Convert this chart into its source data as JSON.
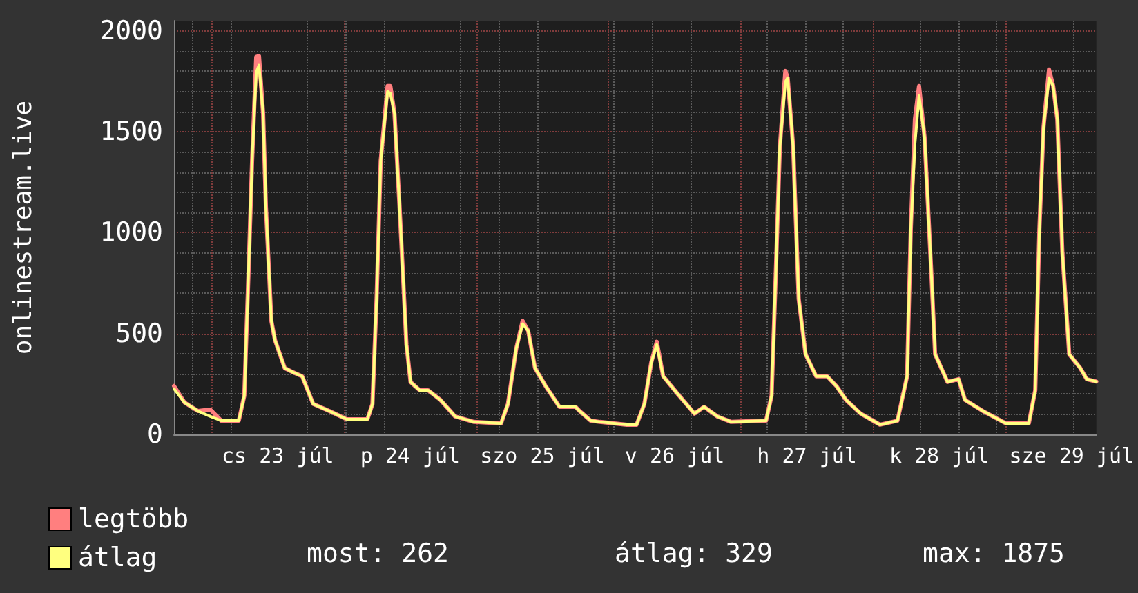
{
  "chart_data": {
    "type": "line",
    "ylabel": "onlinestream.live",
    "x": [
      "--07-22T17:10",
      "--07-22T19:05",
      "--07-22T21:30",
      "--07-22T23:45",
      "--07-23T01:45",
      "--07-23T04:55",
      "--07-23T05:55",
      "--07-23T06:40",
      "--07-23T07:20",
      "--07-23T08:05",
      "--07-23T08:35",
      "--07-23T09:20",
      "--07-23T09:50",
      "--07-23T10:50",
      "--07-23T11:30",
      "--07-23T13:15",
      "--07-23T14:45",
      "--07-23T16:25",
      "--07-23T18:25",
      "--07-23T21:20",
      "--07-24T00:30",
      "--07-24T04:15",
      "--07-24T05:10",
      "--07-24T05:55",
      "--07-24T06:40",
      "--07-24T07:55",
      "--07-24T08:25",
      "--07-24T09:10",
      "--07-24T10:05",
      "--07-24T11:20",
      "--07-24T12:05",
      "--07-24T13:45",
      "--07-24T15:15",
      "--07-24T17:30",
      "--07-24T20:10",
      "--07-24T23:35",
      "--07-25T04:30",
      "--07-25T05:45",
      "--07-25T07:15",
      "--07-25T08:25",
      "--07-25T09:25",
      "--07-25T10:40",
      "--07-25T12:35",
      "--07-25T15:05",
      "--07-25T18:00",
      "--07-25T18:45",
      "--07-25T20:45",
      "--07-25T22:25",
      "--07-26T03:20",
      "--07-26T05:05",
      "--07-26T06:30",
      "--07-26T07:45",
      "--07-26T08:45",
      "--07-26T09:55",
      "--07-26T12:25",
      "--07-26T15:35",
      "--07-26T17:20",
      "--07-26T19:45",
      "--07-26T22:15",
      "--07-27T04:35",
      "--07-27T05:35",
      "--07-27T06:20",
      "--07-27T07:05",
      "--07-27T08:05",
      "--07-27T08:30",
      "--07-27T09:30",
      "--07-27T10:30",
      "--07-27T11:45",
      "--07-27T13:40",
      "--07-27T15:40",
      "--07-27T17:20",
      "--07-27T19:05",
      "--07-27T21:45",
      "--07-28T01:15",
      "--07-28T04:25",
      "--07-28T06:10",
      "--07-28T06:50",
      "--07-28T07:35",
      "--07-28T08:20",
      "--07-28T09:20",
      "--07-28T10:35",
      "--07-28T11:15",
      "--07-28T13:30",
      "--07-28T15:30",
      "--07-28T16:40",
      "--07-28T19:55",
      "--07-29T00:05",
      "--07-29T04:15",
      "--07-29T05:25",
      "--07-29T06:10",
      "--07-29T06:55",
      "--07-29T07:55",
      "--07-29T08:40",
      "--07-29T09:25",
      "--07-29T10:20",
      "--07-29T11:35",
      "--07-29T13:35",
      "--07-29T14:45",
      "--07-29T16:30"
    ],
    "series": [
      {
        "name": "legtöbb",
        "color": "#ff7f7f",
        "values": [
          240,
          158,
          116,
          123,
          68,
          68,
          192,
          788,
          1356,
          1870,
          1875,
          1589,
          1130,
          561,
          466,
          329,
          308,
          288,
          151,
          116,
          75,
          75,
          151,
          671,
          1356,
          1726,
          1726,
          1589,
          1130,
          445,
          260,
          219,
          219,
          171,
          89,
          62,
          55,
          151,
          425,
          562,
          514,
          329,
          240,
          137,
          137,
          116,
          68,
          62,
          48,
          48,
          151,
          356,
          459,
          288,
          205,
          103,
          137,
          89,
          62,
          68,
          192,
          788,
          1425,
          1801,
          1767,
          1425,
          671,
          397,
          288,
          288,
          240,
          171,
          103,
          48,
          68,
          288,
          1014,
          1562,
          1726,
          1473,
          788,
          397,
          260,
          274,
          171,
          116,
          55,
          55,
          219,
          1014,
          1521,
          1808,
          1726,
          1562,
          904,
          397,
          329,
          274,
          262
        ]
      },
      {
        "name": "átlag",
        "color": "#ffff7f",
        "values": [
          226,
          158,
          116,
          89,
          68,
          68,
          192,
          788,
          1356,
          1795,
          1829,
          1589,
          1130,
          561,
          466,
          329,
          308,
          288,
          151,
          116,
          75,
          75,
          151,
          671,
          1356,
          1699,
          1690,
          1589,
          1130,
          445,
          260,
          219,
          219,
          171,
          89,
          62,
          55,
          151,
          425,
          548,
          514,
          329,
          240,
          137,
          137,
          116,
          68,
          62,
          48,
          48,
          151,
          356,
          445,
          288,
          205,
          103,
          137,
          89,
          62,
          68,
          192,
          788,
          1425,
          1747,
          1767,
          1425,
          671,
          397,
          288,
          288,
          240,
          171,
          103,
          48,
          68,
          288,
          1014,
          1438,
          1678,
          1473,
          788,
          397,
          260,
          274,
          171,
          116,
          55,
          55,
          219,
          1014,
          1521,
          1767,
          1726,
          1562,
          904,
          397,
          329,
          274,
          262
        ]
      }
    ],
    "xlim": [
      "--07-22T17:10",
      "--07-29T16:30"
    ],
    "xticks": [
      {
        "value": "--07-23T12:00",
        "label": "cs 23 júl"
      },
      {
        "value": "--07-24T12:00",
        "label": "p 24 júl"
      },
      {
        "value": "--07-25T12:00",
        "label": "szo 25 júl"
      },
      {
        "value": "--07-26T12:00",
        "label": "v 26 júl"
      },
      {
        "value": "--07-27T12:00",
        "label": "h 27 júl"
      },
      {
        "value": "--07-28T12:00",
        "label": "k 28 júl"
      },
      {
        "value": "--07-29T12:00",
        "label": "sze 29 júl"
      }
    ],
    "ylim": [
      0,
      2050
    ],
    "yticks": [
      0,
      500,
      1000,
      1500,
      2000
    ],
    "grid": true,
    "legend": "bottom left",
    "marker": "none",
    "line_style": "solid",
    "annotations": [
      "most: 262",
      "átlag: 329",
      "max: 1875"
    ]
  }
}
